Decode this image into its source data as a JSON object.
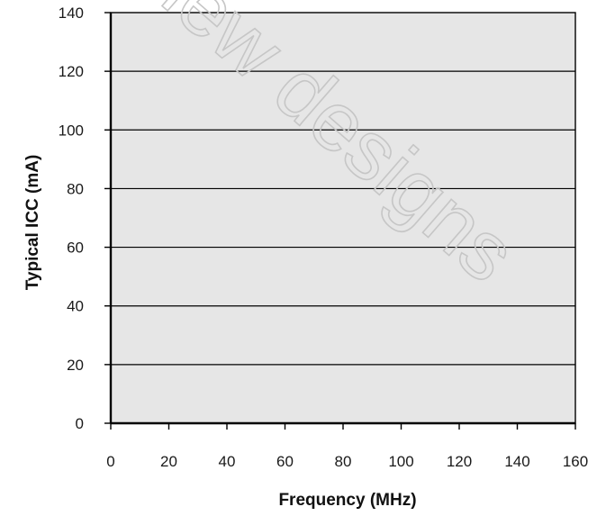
{
  "colors": {
    "plot_background": "#e6e6e6",
    "gridline": "#000000",
    "axis": "#000000",
    "frame": "#000000",
    "watermark_outline": "#c6c6c6"
  },
  "watermark": {
    "text": "new designs"
  },
  "chart_data": {
    "type": "line",
    "title": "",
    "xlabel": "Frequency (MHz)",
    "ylabel": "Typical ICC (mA)",
    "xlim": [
      0,
      160
    ],
    "ylim": [
      0,
      140
    ],
    "x_ticks": [
      0,
      20,
      40,
      60,
      80,
      100,
      120,
      140,
      160
    ],
    "y_ticks": [
      0,
      20,
      40,
      60,
      80,
      100,
      120,
      140
    ],
    "x_tick_labels": [
      "0",
      "20",
      "40",
      "60",
      "80",
      "100",
      "120",
      "140",
      "160"
    ],
    "y_tick_labels": [
      "0",
      "20",
      "40",
      "60",
      "80",
      "100",
      "120",
      "140"
    ],
    "grid": "horizontal",
    "legend": "none",
    "series": []
  }
}
